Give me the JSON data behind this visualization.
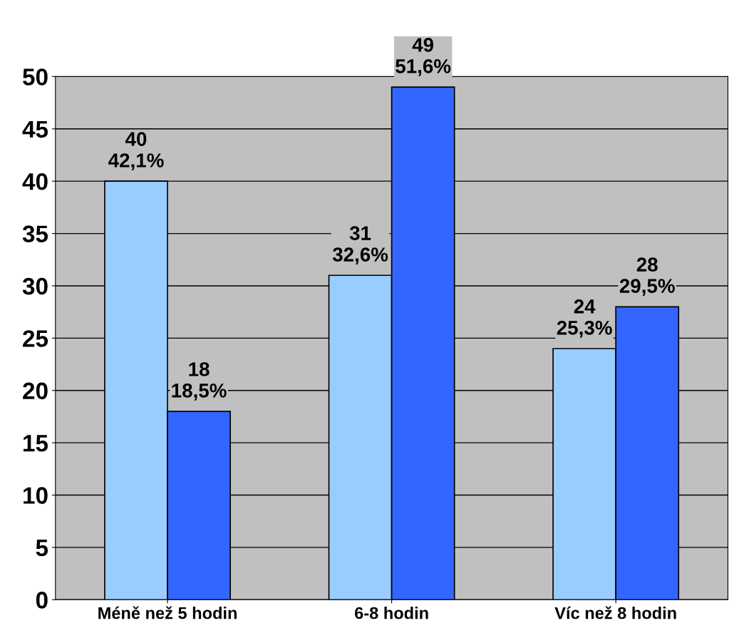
{
  "chart_data": {
    "type": "bar",
    "categories": [
      "Méně než 5 hodin",
      "6-8 hodin",
      "Víc než 8 hodin"
    ],
    "series": [
      {
        "color": "#99ccff",
        "values": [
          40,
          31,
          24
        ],
        "value_labels": [
          "40\n42,1%",
          "31\n32,6%",
          "24\n25,3%"
        ]
      },
      {
        "color": "#3366ff",
        "values": [
          18,
          49,
          28
        ],
        "value_labels": [
          "18\n18,5%",
          "49\n51,6%",
          "28\n29,5%"
        ]
      }
    ],
    "ylim": [
      0,
      50
    ],
    "yticks": [
      0,
      5,
      10,
      15,
      20,
      25,
      30,
      35,
      40,
      45,
      50
    ],
    "grid": "y",
    "legend": false
  }
}
